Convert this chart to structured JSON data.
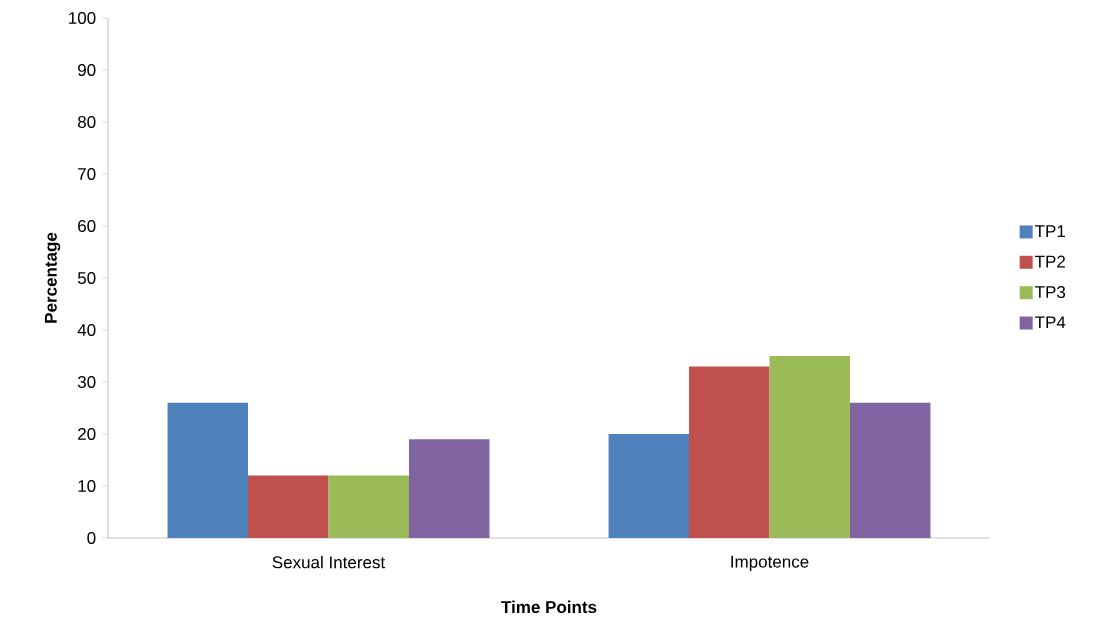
{
  "chart_data": {
    "type": "bar",
    "xlabel": "Time Points",
    "ylabel": "Percentage",
    "categories": [
      "Sexual Interest",
      "Impotence"
    ],
    "series": [
      {
        "name": "TP1",
        "color": "#4f81bd",
        "values": [
          26,
          20
        ]
      },
      {
        "name": "TP2",
        "color": "#c0504d",
        "values": [
          12,
          33
        ]
      },
      {
        "name": "TP3",
        "color": "#9bbb59",
        "values": [
          12,
          35
        ]
      },
      {
        "name": "TP4",
        "color": "#8064a2",
        "values": [
          19,
          26
        ]
      }
    ],
    "ylim": [
      0,
      100
    ],
    "yticks": [
      0,
      10,
      20,
      30,
      40,
      50,
      60,
      70,
      80,
      90,
      100
    ],
    "grid": false,
    "legend": "right"
  }
}
